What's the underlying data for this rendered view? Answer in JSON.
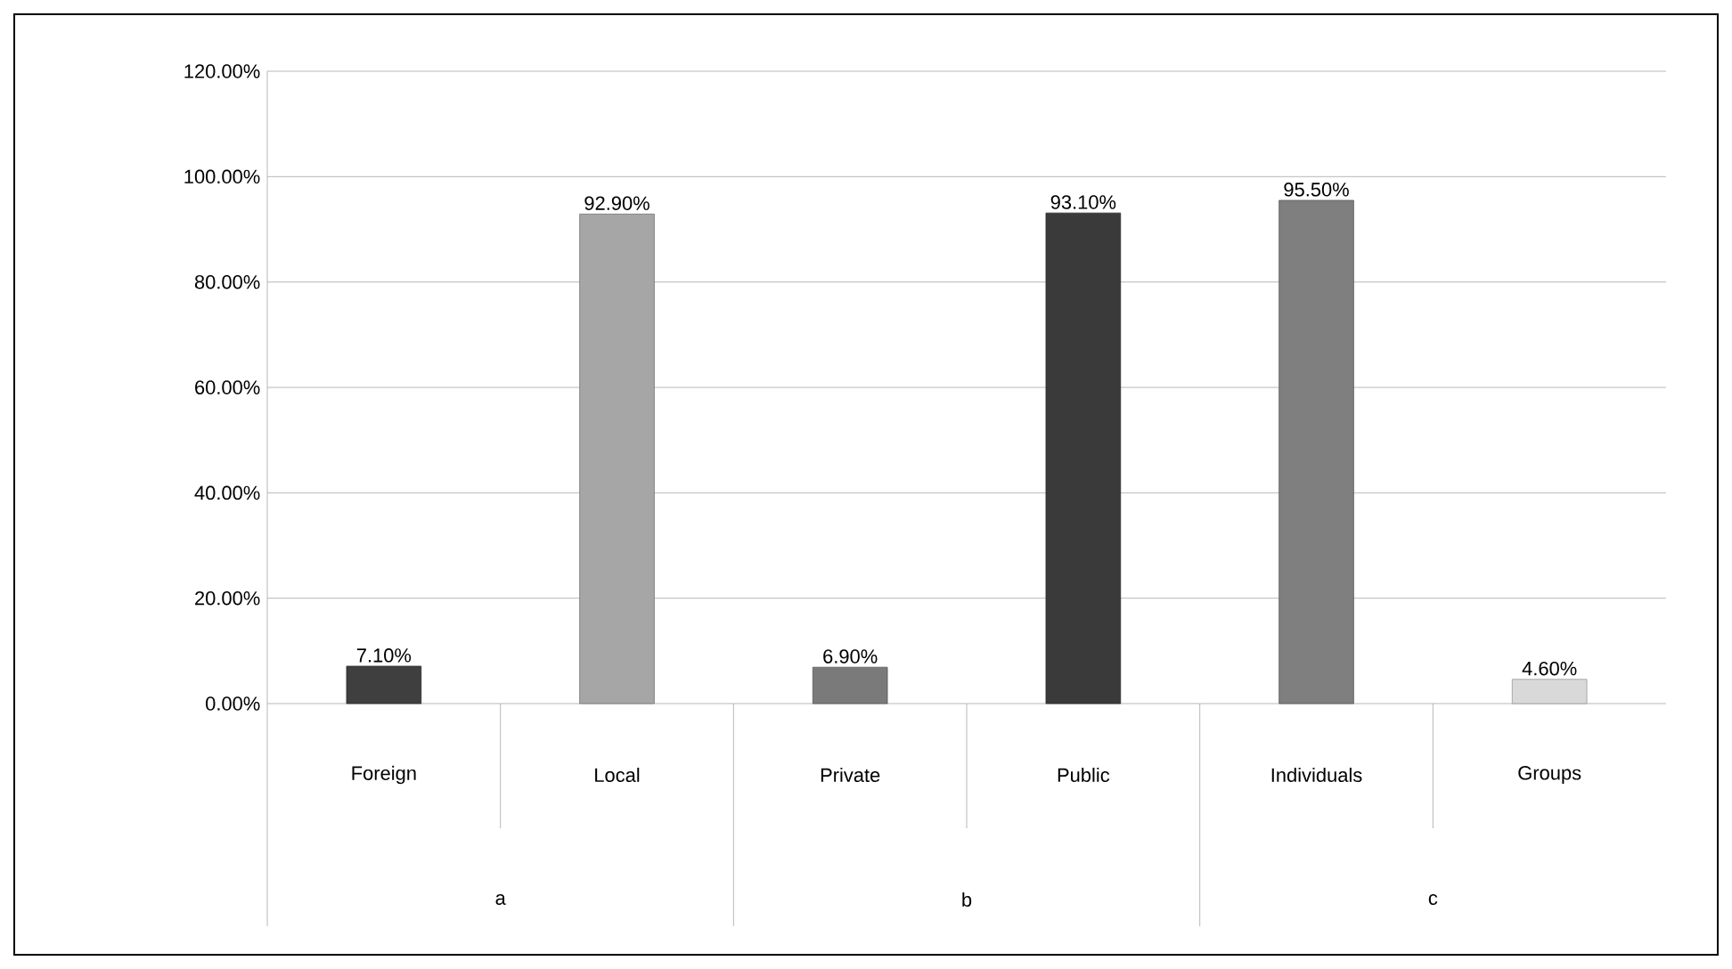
{
  "chart_data": {
    "type": "bar",
    "categories": [
      "Foreign",
      "Local",
      "Private",
      "Public",
      "Individuals",
      "Groups"
    ],
    "values": [
      7.1,
      92.9,
      6.9,
      93.1,
      95.5,
      4.6
    ],
    "value_labels": [
      "7.10%",
      "92.90%",
      "6.90%",
      "93.10%",
      "95.50%",
      "4.60%"
    ],
    "colors": [
      "#3f3f3f",
      "#a6a6a6",
      "#7a7a7a",
      "#3a3a3a",
      "#7f7f7f",
      "#d9d9d9"
    ],
    "ylim": [
      0,
      120
    ],
    "yticks": [
      {
        "value": 0,
        "label": "0.00%"
      },
      {
        "value": 20,
        "label": "20.00%"
      },
      {
        "value": 40,
        "label": "40.00%"
      },
      {
        "value": 60,
        "label": "60.00%"
      },
      {
        "value": 80,
        "label": "80.00%"
      },
      {
        "value": 100,
        "label": "100.00%"
      },
      {
        "value": 120,
        "label": "120.00%"
      }
    ],
    "grid": "y",
    "annotations": [
      "a",
      "b",
      "c"
    ]
  }
}
